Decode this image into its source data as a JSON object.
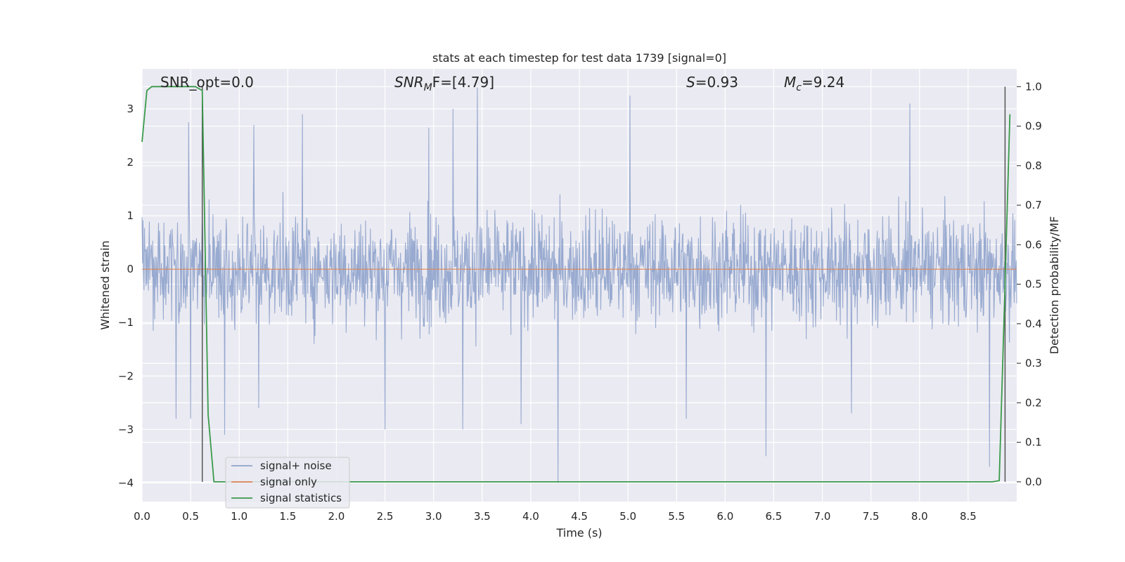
{
  "chart_data": {
    "type": "line",
    "title": "stats at each timestep for test data 1739 [signal=0]",
    "xlabel": "Time (s)",
    "ylabel": "Whitened strain",
    "y2label": "Detection probability/MF",
    "xlim": [
      0.0,
      9.0
    ],
    "ylim": [
      -4.35,
      3.75
    ],
    "y2lim": [
      -0.05,
      1.045
    ],
    "grid": true,
    "legend_position": "lower-left",
    "x_ticks": [
      "0.0",
      "0.5",
      "1.0",
      "1.5",
      "2.0",
      "2.5",
      "3.0",
      "3.5",
      "4.0",
      "4.5",
      "5.0",
      "5.5",
      "6.0",
      "6.5",
      "7.0",
      "7.5",
      "8.0",
      "8.5"
    ],
    "y_ticks": [
      "3",
      "2",
      "1",
      "0",
      "−1",
      "−2",
      "−3",
      "−4"
    ],
    "y2_ticks": [
      "1.0",
      "0.9",
      "0.8",
      "0.7",
      "0.6",
      "0.5",
      "0.4",
      "0.3",
      "0.2",
      "0.1",
      "0.0"
    ],
    "annotations": {
      "snr_opt": "SNR_opt=0.0",
      "snr_mf_main": "SNR",
      "snr_mf_sub": "M",
      "snr_mf_rest": "F=[4.79]",
      "s_main": "S",
      "s_rest": "=0.93",
      "mc_main": "M",
      "mc_sub": "c",
      "mc_rest": "=9.24"
    },
    "vlines_x": [
      0.62,
      8.88
    ],
    "series": [
      {
        "name": "signal+ noise",
        "color": "#8fa3cc",
        "description": "whitened strain noise band approx within [-2.5, 2.5], peaks near 3.4 and dips near -4.0"
      },
      {
        "name": "signal only",
        "color": "#dd8452",
        "x": [
          0.0,
          9.0
        ],
        "y": [
          0.0,
          0.0
        ]
      },
      {
        "name": "signal statistics",
        "color": "#3a9a4a",
        "axis": "right",
        "x": [
          0.0,
          0.05,
          0.1,
          0.55,
          0.62,
          0.68,
          0.74,
          8.75,
          8.82,
          8.88,
          8.93
        ],
        "y": [
          0.86,
          0.99,
          1.0,
          1.0,
          0.99,
          0.17,
          0.0,
          0.0,
          0.003,
          0.5,
          0.93
        ]
      }
    ],
    "noise_spikes": [
      {
        "x": 0.48,
        "y": 2.75
      },
      {
        "x": 1.15,
        "y": 2.7
      },
      {
        "x": 1.65,
        "y": 2.9
      },
      {
        "x": 3.2,
        "y": 3.0
      },
      {
        "x": 3.45,
        "y": 3.4
      },
      {
        "x": 5.02,
        "y": 3.25
      },
      {
        "x": 7.9,
        "y": 3.1
      },
      {
        "x": 2.95,
        "y": 2.65
      },
      {
        "x": 0.35,
        "y": -2.8
      },
      {
        "x": 0.5,
        "y": -2.8
      },
      {
        "x": 0.85,
        "y": -3.1
      },
      {
        "x": 2.5,
        "y": -3.0
      },
      {
        "x": 3.3,
        "y": -3.0
      },
      {
        "x": 3.9,
        "y": -2.9
      },
      {
        "x": 4.28,
        "y": -4.0
      },
      {
        "x": 6.42,
        "y": -3.5
      },
      {
        "x": 5.6,
        "y": -2.8
      },
      {
        "x": 8.72,
        "y": -3.7
      },
      {
        "x": 1.2,
        "y": -2.6
      },
      {
        "x": 7.3,
        "y": -2.7
      }
    ]
  }
}
